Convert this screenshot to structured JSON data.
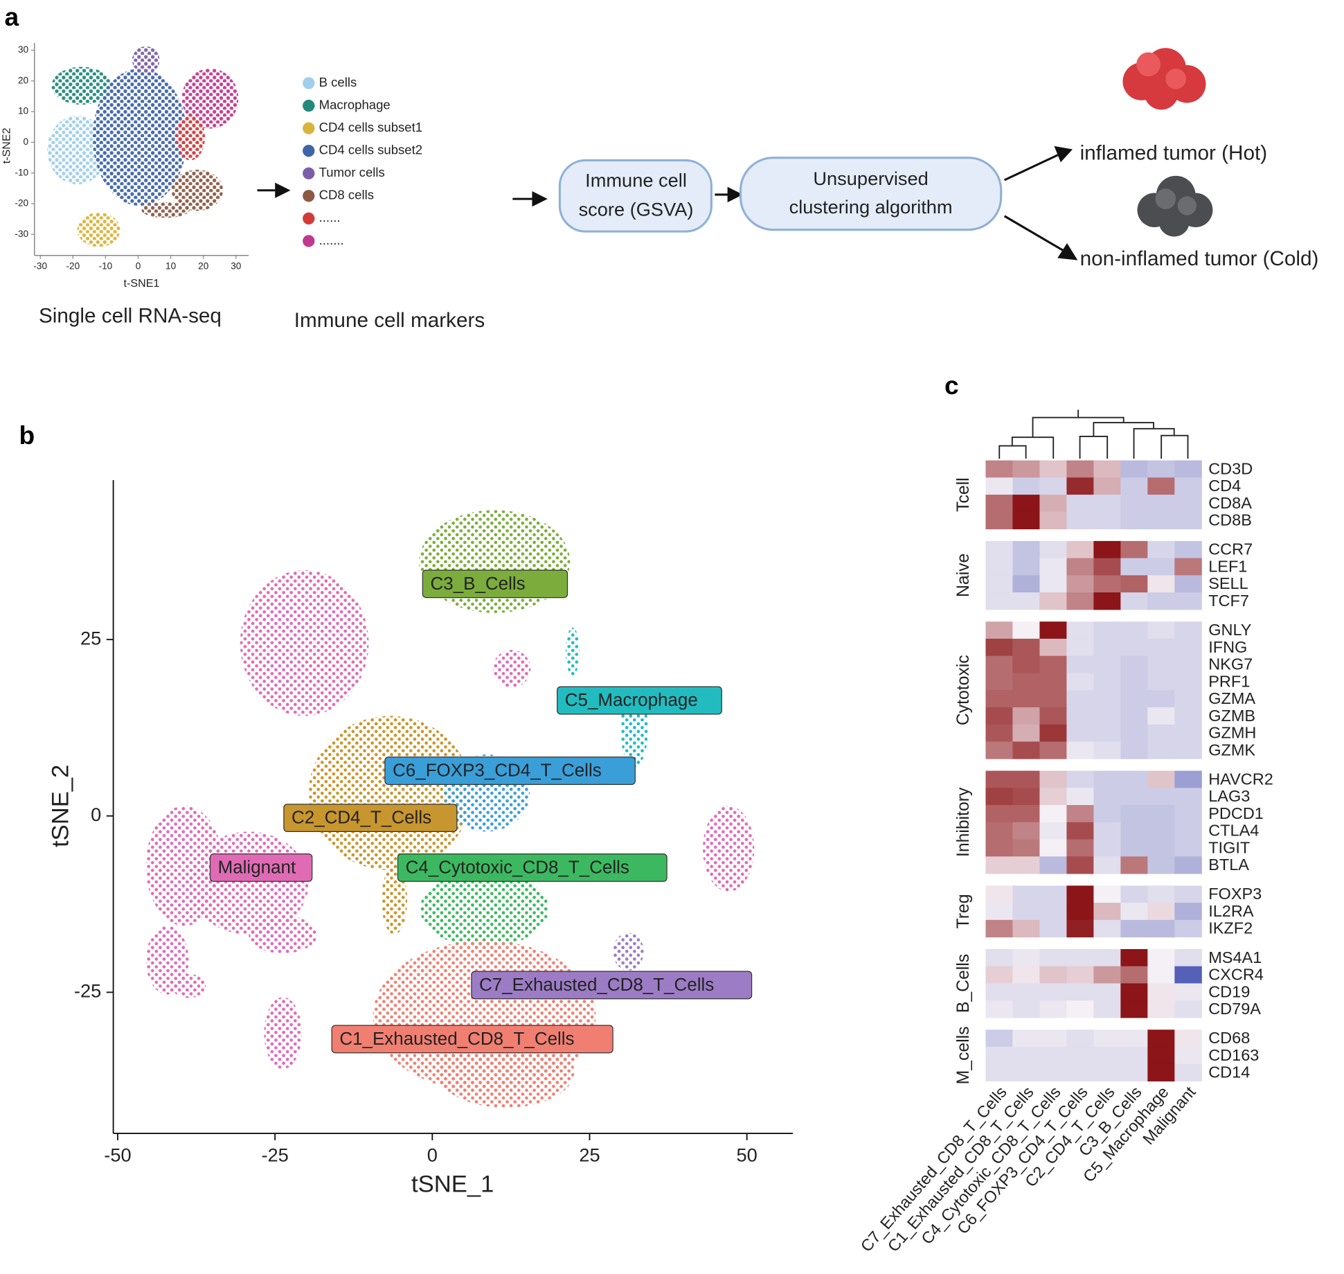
{
  "panel_a": {
    "label": "a",
    "scatter": {
      "xlabel": "t-SNE1",
      "ylabel": "t-SNE2",
      "xlim": [
        -31.8,
        33.9
      ],
      "ylim": [
        -36.9,
        32.4
      ],
      "xticks": [
        -30,
        -20,
        -10,
        0,
        10,
        20,
        30
      ],
      "yticks": [
        30,
        20,
        10,
        0,
        -10,
        -20,
        -30
      ]
    },
    "caption_scatter": "Single cell RNA-seq",
    "markers": [
      {
        "name": "B cells",
        "color": "#9fcfea"
      },
      {
        "name": "Macrophage",
        "color": "#23897a"
      },
      {
        "name": "CD4 cells subset1",
        "color": "#d9b43c"
      },
      {
        "name": "CD4 cells subset2",
        "color": "#3f64a8"
      },
      {
        "name": "Tumor cells",
        "color": "#7b5ea8"
      },
      {
        "name": "CD8 cells",
        "color": "#8b5a45"
      },
      {
        "name": "......",
        "color": "#d23a3a"
      },
      {
        "name": ".......",
        "color": "#c0398f"
      }
    ],
    "caption_markers": "Immune cell markers",
    "step1": [
      "Immune cell",
      "score (GSVA)"
    ],
    "step2": [
      "Unsupervised",
      "clustering algorithm"
    ],
    "outcomes": [
      "inflamed tumor (Hot)",
      "non-inflamed tumor (Cold)"
    ]
  },
  "panel_b": {
    "label": "b",
    "xlabel": "tSNE_1",
    "ylabel": "tSNE_2",
    "xlim": [
      -50.7,
      57.3
    ],
    "ylim": [
      -45,
      47.6
    ],
    "xticks": [
      -50,
      -25,
      0,
      25,
      50
    ],
    "yticks": [
      -25,
      0,
      25
    ],
    "clusters": [
      {
        "name": "C1_Exhausted_CD8_T_Cells",
        "color": "#f07f72"
      },
      {
        "name": "C2_CD4_T_Cells",
        "color": "#c8962e"
      },
      {
        "name": "C3_B_Cells",
        "color": "#7cad3c"
      },
      {
        "name": "C4_Cytotoxic_CD8_T_Cells",
        "color": "#3cb960"
      },
      {
        "name": "C5_Macrophage",
        "color": "#22bcc0"
      },
      {
        "name": "C6_FOXP3_CD4_T_Cells",
        "color": "#3a9fd9"
      },
      {
        "name": "C7_Exhausted_CD8_T_Cells",
        "color": "#9c7cc4"
      },
      {
        "name": "Malignant",
        "color": "#e06bb5"
      }
    ]
  },
  "panel_c": {
    "label": "c",
    "color_low": "#5560b8",
    "color_mid": "#f5f0f5",
    "color_high": "#8b1518",
    "columns": [
      "C7_Exhausted_CD8_T_Cells",
      "C1_Exhausted_CD8_T_Cells",
      "C4_Cytotoxic_CD8_T_Cells",
      "C6_FOXP3_CD4_T_Cells",
      "C2_CD4_T_Cells",
      "C3_B_Cells",
      "C5_Macrophage",
      "Malignant"
    ],
    "groups": [
      {
        "name": "Tcell",
        "rows": [
          {
            "gene": "CD3D",
            "values": [
              1,
              0.8,
              0.4,
              1,
              0.5,
              -0.6,
              -0.5,
              -0.6
            ]
          },
          {
            "gene": "CD4",
            "values": [
              -0.1,
              -0.4,
              -0.3,
              1.8,
              0.6,
              -0.4,
              1.2,
              -0.4
            ]
          },
          {
            "gene": "CD8A",
            "values": [
              1.2,
              2,
              0.6,
              -0.3,
              -0.3,
              -0.4,
              -0.4,
              -0.4
            ]
          },
          {
            "gene": "CD8B",
            "values": [
              1.2,
              2,
              0.5,
              -0.3,
              -0.3,
              -0.4,
              -0.4,
              -0.4
            ]
          }
        ]
      },
      {
        "name": "Naive",
        "rows": [
          {
            "gene": "CCR7",
            "values": [
              -0.2,
              -0.5,
              -0.2,
              0.4,
              2,
              1.2,
              -0.3,
              -0.5
            ]
          },
          {
            "gene": "LEF1",
            "values": [
              -0.2,
              -0.5,
              -0.1,
              1,
              1.5,
              -0.4,
              -0.4,
              1.1
            ]
          },
          {
            "gene": "SELL",
            "values": [
              -0.2,
              -0.7,
              -0.1,
              0.8,
              1.2,
              1.3,
              0.1,
              -0.6
            ]
          },
          {
            "gene": "TCF7",
            "values": [
              -0.2,
              -0.2,
              0.4,
              1,
              2,
              -0.3,
              -0.4,
              -0.4
            ]
          }
        ]
      },
      {
        "name": "Cytotoxic",
        "rows": [
          {
            "gene": "GNLY",
            "values": [
              0.7,
              0,
              2,
              -0.2,
              -0.3,
              -0.3,
              -0.2,
              -0.3
            ]
          },
          {
            "gene": "IFNG",
            "values": [
              1.6,
              1.4,
              0.5,
              -0.2,
              -0.3,
              -0.3,
              -0.3,
              -0.3
            ]
          },
          {
            "gene": "NKG7",
            "values": [
              1.2,
              1.4,
              1.3,
              -0.3,
              -0.3,
              -0.4,
              -0.3,
              -0.3
            ]
          },
          {
            "gene": "PRF1",
            "values": [
              1.2,
              1.3,
              1.3,
              -0.2,
              -0.3,
              -0.4,
              -0.3,
              -0.3
            ]
          },
          {
            "gene": "GZMA",
            "values": [
              1.3,
              1.3,
              1.3,
              -0.3,
              -0.3,
              -0.4,
              -0.4,
              -0.3
            ]
          },
          {
            "gene": "GZMB",
            "values": [
              1.5,
              0.7,
              1.4,
              -0.3,
              -0.3,
              -0.4,
              -0.1,
              -0.3
            ]
          },
          {
            "gene": "GZMH",
            "values": [
              1.4,
              0.6,
              1.7,
              -0.3,
              -0.3,
              -0.4,
              -0.3,
              -0.3
            ]
          },
          {
            "gene": "GZMK",
            "values": [
              1.1,
              1.5,
              1.2,
              -0.1,
              -0.2,
              -0.4,
              -0.3,
              -0.3
            ]
          }
        ]
      },
      {
        "name": "Inhibitory",
        "rows": [
          {
            "gene": "HAVCR2",
            "values": [
              1.4,
              1.4,
              0.4,
              -0.3,
              -0.4,
              -0.4,
              0.4,
              -0.9
            ]
          },
          {
            "gene": "LAG3",
            "values": [
              1.6,
              1.5,
              0.3,
              -0.1,
              -0.4,
              -0.4,
              -0.4,
              -0.4
            ]
          },
          {
            "gene": "PDCD1",
            "values": [
              1.3,
              1.3,
              0,
              1,
              -0.4,
              -0.5,
              -0.5,
              -0.4
            ]
          },
          {
            "gene": "CTLA4",
            "values": [
              1.2,
              1,
              -0.1,
              1.5,
              -0.3,
              -0.5,
              -0.5,
              -0.4
            ]
          },
          {
            "gene": "TIGIT",
            "values": [
              1.2,
              1.1,
              0,
              1.2,
              -0.3,
              -0.5,
              -0.5,
              -0.4
            ]
          },
          {
            "gene": "BTLA",
            "values": [
              0.3,
              0.3,
              -0.6,
              1.5,
              -0.2,
              1.1,
              -0.5,
              -0.7
            ]
          }
        ]
      },
      {
        "name": "Treg",
        "rows": [
          {
            "gene": "FOXP3",
            "values": [
              0.1,
              -0.3,
              -0.3,
              2,
              0,
              -0.3,
              -0.2,
              -0.3
            ]
          },
          {
            "gene": "IL2RA",
            "values": [
              -0.1,
              -0.3,
              -0.3,
              2,
              0.5,
              -0.1,
              0.2,
              -0.7
            ]
          },
          {
            "gene": "IKZF2",
            "values": [
              1,
              0.5,
              -0.3,
              1.9,
              -0.2,
              -0.6,
              -0.6,
              -0.4
            ]
          }
        ]
      },
      {
        "name": "B_Cells",
        "rows": [
          {
            "gene": "MS4A1",
            "values": [
              -0.2,
              -0.1,
              -0.2,
              -0.2,
              -0.2,
              2,
              0,
              -0.2
            ]
          },
          {
            "gene": "CXCR4",
            "values": [
              0.3,
              0.1,
              0.4,
              0.3,
              0.8,
              1.2,
              0,
              -1.6
            ]
          },
          {
            "gene": "CD19",
            "values": [
              -0.2,
              -0.2,
              -0.2,
              -0.2,
              -0.2,
              2,
              0.1,
              -0.1
            ]
          },
          {
            "gene": "CD79A",
            "values": [
              -0.1,
              -0.2,
              -0.1,
              0,
              -0.2,
              2,
              0.1,
              -0.2
            ]
          }
        ]
      },
      {
        "name": "M_cells",
        "rows": [
          {
            "gene": "CD68",
            "values": [
              -0.4,
              -0.1,
              -0.1,
              -0.2,
              -0.1,
              -0.1,
              2,
              0.1
            ]
          },
          {
            "gene": "CD163",
            "values": [
              -0.2,
              -0.2,
              -0.2,
              -0.2,
              -0.2,
              -0.2,
              2,
              -0.1
            ]
          },
          {
            "gene": "CD14",
            "values": [
              -0.2,
              -0.2,
              -0.2,
              -0.2,
              -0.2,
              -0.2,
              2,
              -0.2
            ]
          }
        ]
      }
    ]
  }
}
